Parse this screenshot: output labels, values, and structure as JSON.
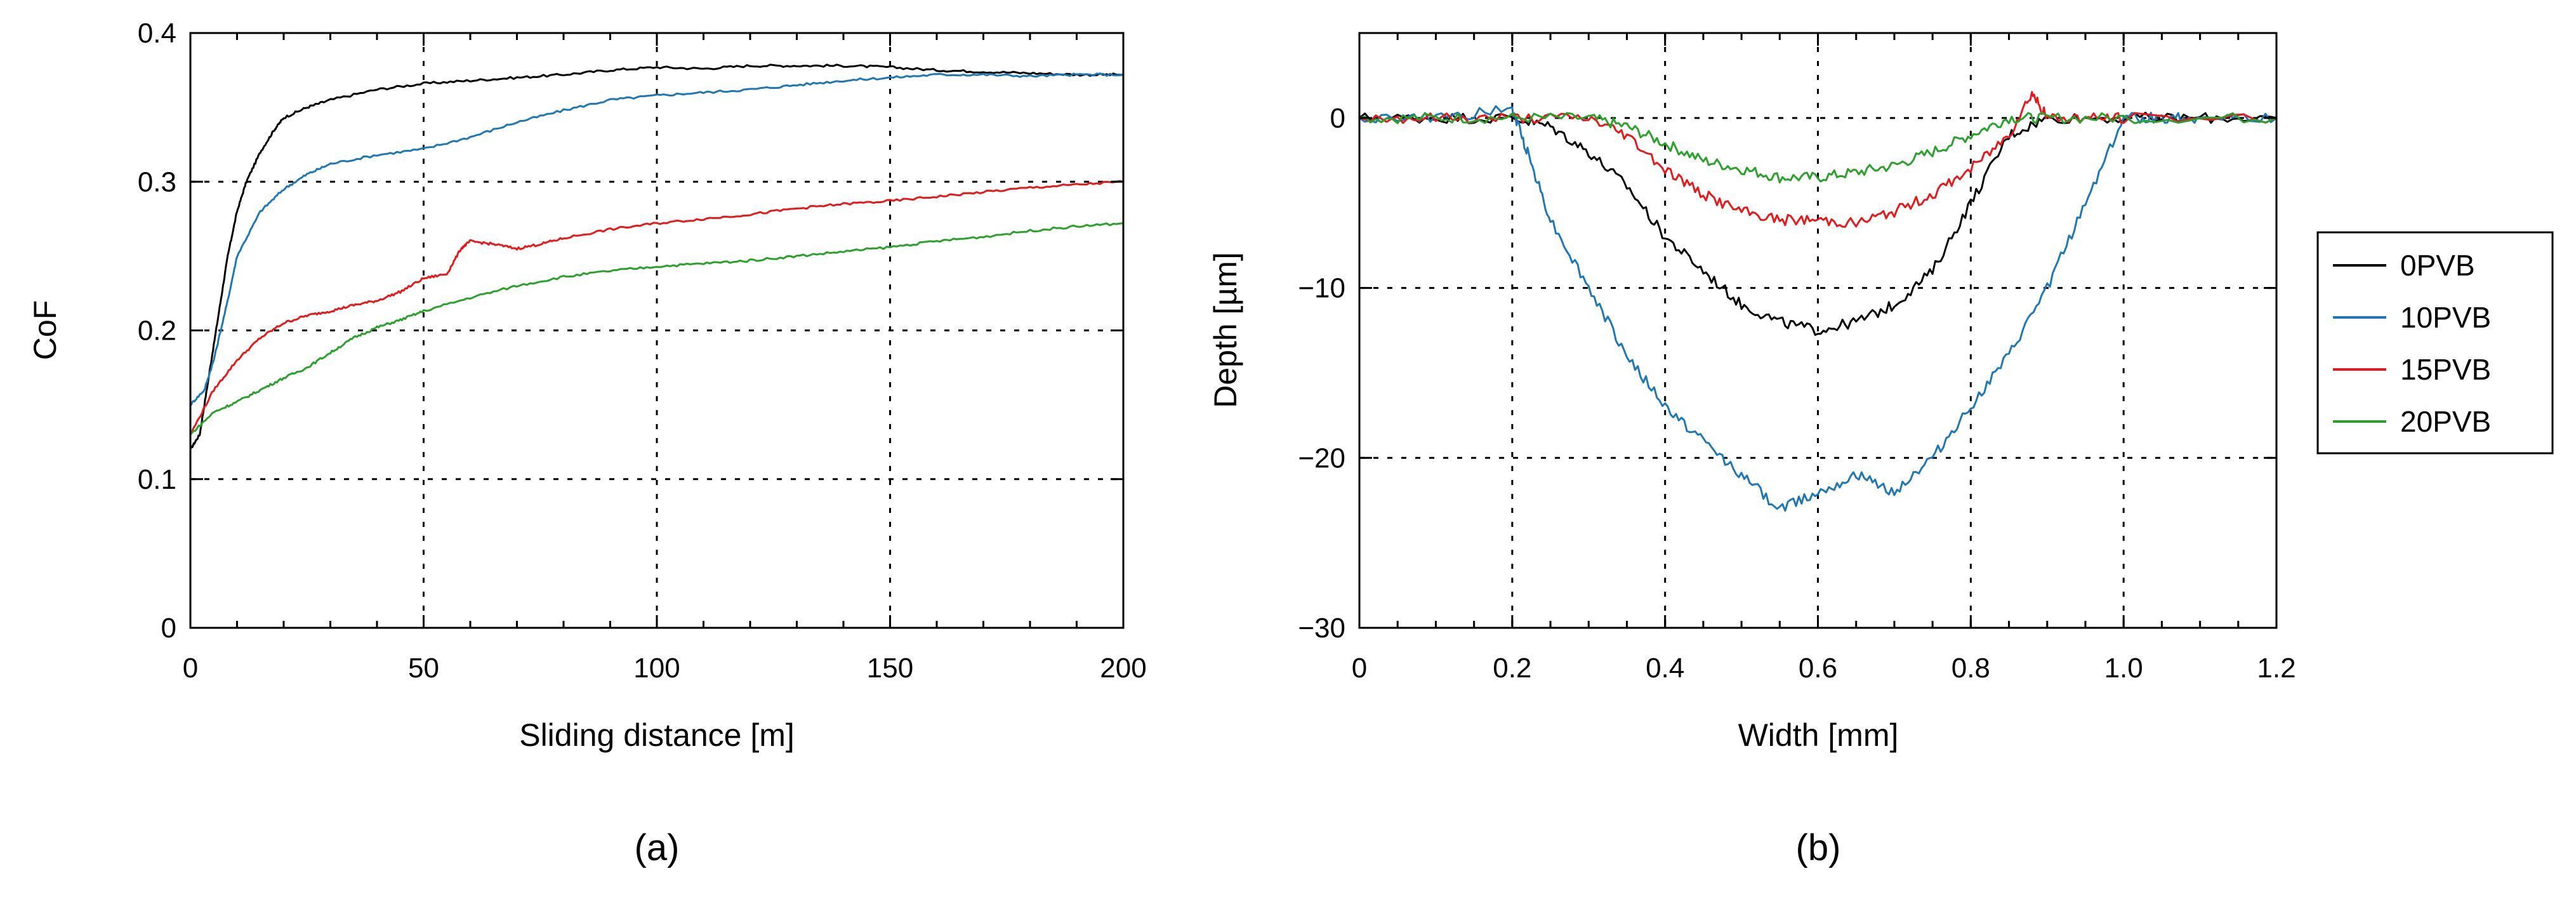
{
  "chart_data": [
    {
      "panel": "(a)",
      "type": "line",
      "xlabel": "Sliding distance [m]",
      "ylabel": "CoF",
      "xlim": [
        0,
        200
      ],
      "ylim": [
        0,
        0.4
      ],
      "xticks": [
        0,
        50,
        100,
        150,
        200
      ],
      "yticks": [
        0,
        0.1,
        0.2,
        0.3,
        0.4
      ],
      "xtick_labels": [
        "0",
        "50",
        "100",
        "150",
        "200"
      ],
      "ytick_labels": [
        "0",
        "0.1",
        "0.2",
        "0.3",
        "0.4"
      ],
      "grid": true,
      "series": [
        {
          "name": "0PVB",
          "color": "#000000",
          "x": [
            0,
            2,
            4,
            6,
            8,
            10,
            12,
            15,
            18,
            20,
            25,
            30,
            40,
            50,
            60,
            70,
            80,
            90,
            100,
            110,
            120,
            130,
            140,
            150,
            160,
            170,
            180,
            190,
            200
          ],
          "y": [
            0.12,
            0.13,
            0.17,
            0.21,
            0.25,
            0.28,
            0.3,
            0.32,
            0.335,
            0.343,
            0.35,
            0.355,
            0.362,
            0.366,
            0.368,
            0.37,
            0.372,
            0.375,
            0.377,
            0.376,
            0.378,
            0.378,
            0.378,
            0.377,
            0.375,
            0.374,
            0.373,
            0.372,
            0.372
          ]
        },
        {
          "name": "10PVB",
          "color": "#1f77b4",
          "x": [
            0,
            3,
            5,
            8,
            10,
            15,
            20,
            25,
            30,
            40,
            50,
            60,
            70,
            80,
            90,
            100,
            110,
            120,
            130,
            140,
            150,
            160,
            170,
            180,
            190,
            200
          ],
          "y": [
            0.15,
            0.16,
            0.18,
            0.22,
            0.25,
            0.28,
            0.295,
            0.305,
            0.312,
            0.318,
            0.322,
            0.33,
            0.34,
            0.348,
            0.355,
            0.358,
            0.36,
            0.362,
            0.365,
            0.368,
            0.37,
            0.372,
            0.372,
            0.371,
            0.372,
            0.372
          ]
        },
        {
          "name": "15PVB",
          "color": "#e41a1c",
          "x": [
            0,
            5,
            10,
            15,
            20,
            25,
            30,
            35,
            40,
            45,
            50,
            55,
            58,
            60,
            65,
            70,
            75,
            80,
            90,
            100,
            110,
            120,
            130,
            140,
            150,
            160,
            170,
            180,
            190,
            200
          ],
          "y": [
            0.13,
            0.16,
            0.18,
            0.195,
            0.205,
            0.21,
            0.213,
            0.217,
            0.22,
            0.226,
            0.235,
            0.238,
            0.255,
            0.26,
            0.258,
            0.255,
            0.258,
            0.262,
            0.268,
            0.272,
            0.275,
            0.278,
            0.282,
            0.285,
            0.287,
            0.29,
            0.293,
            0.296,
            0.298,
            0.3
          ]
        },
        {
          "name": "20PVB",
          "color": "#2ca02c",
          "x": [
            0,
            5,
            10,
            15,
            20,
            25,
            30,
            35,
            40,
            45,
            50,
            60,
            70,
            80,
            90,
            100,
            110,
            120,
            130,
            140,
            150,
            160,
            170,
            180,
            190,
            200
          ],
          "y": [
            0.13,
            0.145,
            0.152,
            0.16,
            0.168,
            0.175,
            0.185,
            0.195,
            0.202,
            0.207,
            0.213,
            0.222,
            0.23,
            0.236,
            0.24,
            0.243,
            0.245,
            0.247,
            0.25,
            0.253,
            0.256,
            0.26,
            0.263,
            0.267,
            0.27,
            0.272
          ]
        }
      ]
    },
    {
      "panel": "(b)",
      "type": "line",
      "xlabel": "Width [mm]",
      "ylabel": "Depth [µm]",
      "xlim": [
        0,
        1.2
      ],
      "ylim": [
        -30,
        5
      ],
      "xticks": [
        0,
        0.2,
        0.4,
        0.6,
        0.8,
        1.0,
        1.2
      ],
      "yticks": [
        0,
        -10,
        -20,
        -30
      ],
      "xtick_labels": [
        "0",
        "0.2",
        "0.4",
        "0.6",
        "0.8",
        "1.0",
        "1.2"
      ],
      "ytick_labels": [
        "0",
        "−10",
        "−20",
        "−30"
      ],
      "grid": true,
      "legend_position": "right",
      "series": [
        {
          "name": "0PVB",
          "color": "#000000",
          "x": [
            0,
            0.1,
            0.2,
            0.25,
            0.3,
            0.35,
            0.4,
            0.45,
            0.5,
            0.55,
            0.6,
            0.65,
            0.7,
            0.75,
            0.8,
            0.85,
            0.9,
            1.0,
            1.1,
            1.2
          ],
          "y": [
            0,
            0,
            0,
            -0.5,
            -2,
            -4,
            -7,
            -9,
            -11,
            -12,
            -12.5,
            -12,
            -11,
            -9,
            -5,
            -1,
            0,
            0,
            0,
            0
          ]
        },
        {
          "name": "10PVB",
          "color": "#1f77b4",
          "x": [
            0,
            0.1,
            0.2,
            0.22,
            0.25,
            0.3,
            0.35,
            0.4,
            0.45,
            0.5,
            0.55,
            0.6,
            0.65,
            0.7,
            0.75,
            0.8,
            0.85,
            0.9,
            0.95,
            1.0,
            1.05,
            1.1,
            1.2
          ],
          "y": [
            0,
            0,
            0.5,
            -2,
            -6,
            -10,
            -14,
            -17,
            -19,
            -21,
            -23,
            -22,
            -21,
            -22,
            -20,
            -17,
            -14,
            -10,
            -5,
            0,
            0,
            0,
            0
          ]
        },
        {
          "name": "15PVB",
          "color": "#e41a1c",
          "x": [
            0,
            0.1,
            0.2,
            0.3,
            0.35,
            0.4,
            0.45,
            0.5,
            0.55,
            0.6,
            0.65,
            0.7,
            0.75,
            0.8,
            0.85,
            0.88,
            0.9,
            0.95,
            1.0,
            1.2
          ],
          "y": [
            0,
            0,
            0,
            0,
            -1,
            -3,
            -4.5,
            -5.5,
            -6,
            -6,
            -6.2,
            -5.5,
            -4.5,
            -3,
            -1,
            1.5,
            0,
            0,
            0,
            0
          ]
        },
        {
          "name": "20PVB",
          "color": "#2ca02c",
          "x": [
            0,
            0.1,
            0.2,
            0.3,
            0.35,
            0.4,
            0.45,
            0.5,
            0.55,
            0.6,
            0.65,
            0.7,
            0.75,
            0.8,
            0.85,
            0.9,
            1.0,
            1.2
          ],
          "y": [
            0,
            0,
            0,
            0,
            -0.5,
            -1.5,
            -2.5,
            -3,
            -3.5,
            -3.5,
            -3.2,
            -2.8,
            -2,
            -1,
            0,
            0,
            0,
            0
          ]
        }
      ]
    }
  ],
  "legend": {
    "entries": [
      "0PVB",
      "10PVB",
      "15PVB",
      "20PVB"
    ],
    "colors": [
      "#000000",
      "#1f77b4",
      "#e41a1c",
      "#2ca02c"
    ]
  },
  "panel_labels": [
    "(a)",
    "(b)"
  ]
}
